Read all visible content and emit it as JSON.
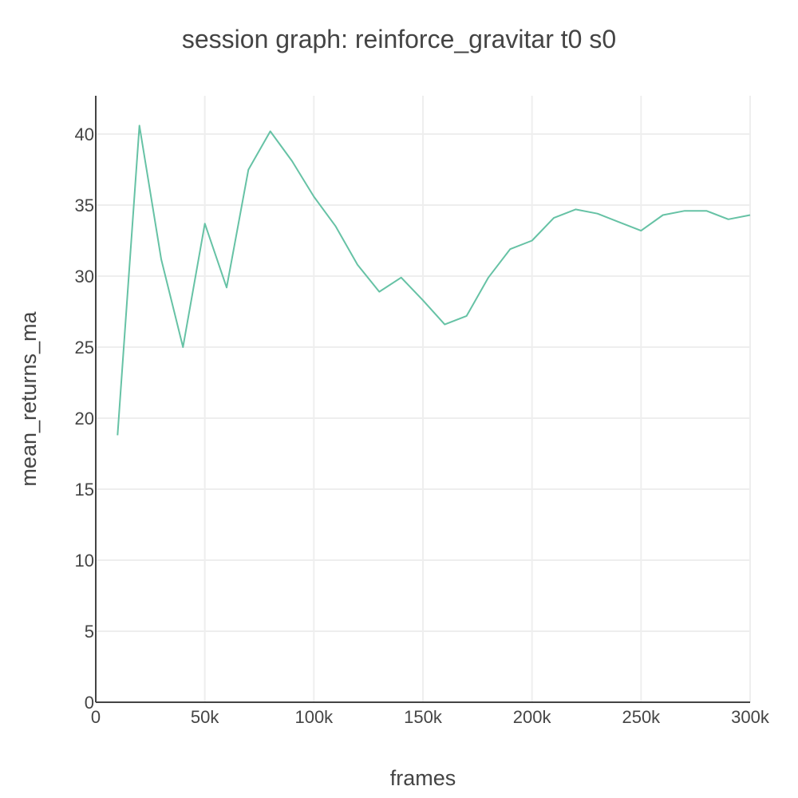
{
  "chart_data": {
    "type": "line",
    "title": "session graph: reinforce_gravitar t0 s0",
    "xlabel": "frames",
    "ylabel": "mean_returns_ma",
    "xlim": [
      0,
      300000
    ],
    "ylim": [
      0,
      42.7
    ],
    "grid": true,
    "x_ticks": [
      0,
      50000,
      100000,
      150000,
      200000,
      250000,
      300000
    ],
    "x_tick_labels": [
      "0",
      "50k",
      "100k",
      "150k",
      "200k",
      "250k",
      "300k"
    ],
    "y_ticks": [
      0,
      5,
      10,
      15,
      20,
      25,
      30,
      35,
      40
    ],
    "y_tick_labels": [
      "0",
      "5",
      "10",
      "15",
      "20",
      "25",
      "30",
      "35",
      "40"
    ],
    "series": [
      {
        "color": "#66c2a5",
        "x": [
          10000,
          20000,
          30000,
          40000,
          50000,
          60000,
          70000,
          80000,
          90000,
          100000,
          110000,
          120000,
          130000,
          140000,
          150000,
          160000,
          170000,
          180000,
          190000,
          200000,
          210000,
          220000,
          230000,
          240000,
          250000,
          260000,
          270000,
          280000,
          290000,
          300000
        ],
        "y": [
          18.8,
          40.6,
          31.2,
          25.0,
          33.7,
          29.2,
          37.5,
          40.2,
          38.1,
          35.6,
          33.5,
          30.8,
          28.9,
          29.9,
          28.3,
          26.6,
          27.2,
          29.9,
          31.9,
          32.5,
          34.1,
          34.7,
          34.4,
          33.8,
          33.2,
          34.3,
          34.6,
          34.6,
          34.0,
          34.3
        ]
      }
    ]
  }
}
